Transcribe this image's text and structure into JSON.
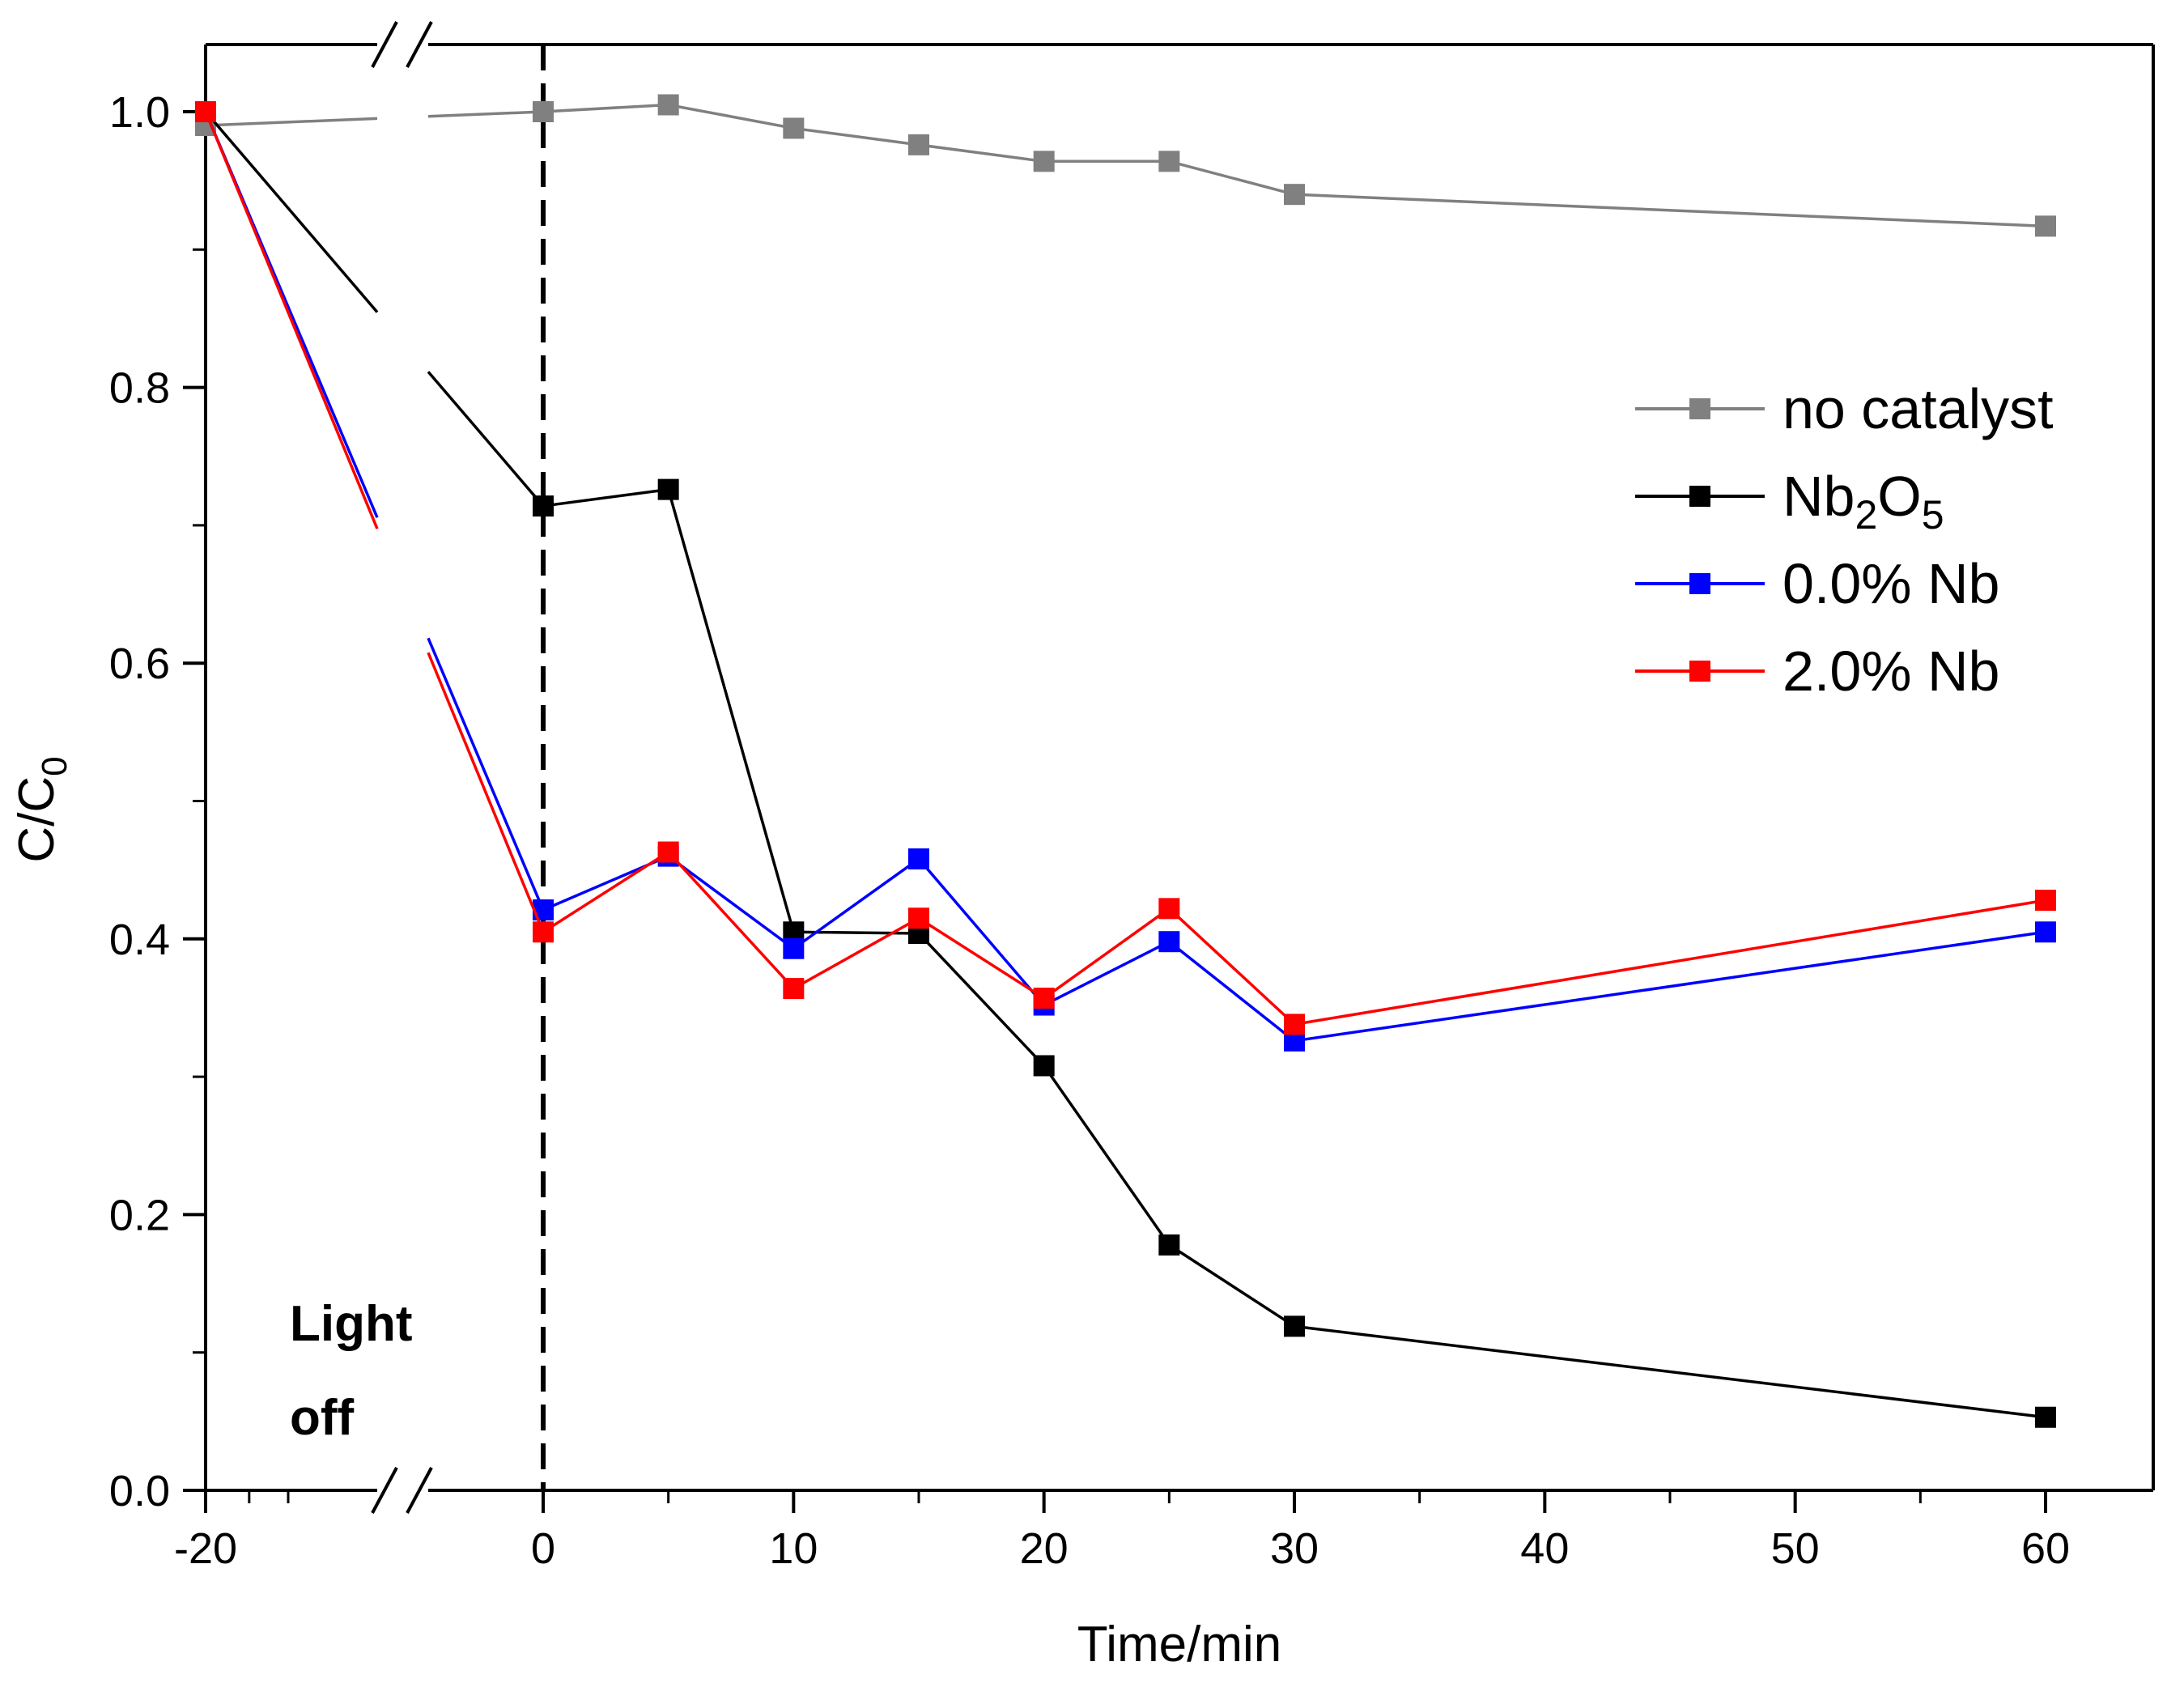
{
  "chart_data": {
    "type": "line",
    "title": "",
    "xlabel": "Time/min",
    "ylabel": "C/C0",
    "ylabel_main": "C/C",
    "ylabel_sub": "0",
    "xlim": [
      -20,
      65
    ],
    "ylim": [
      0.0,
      1.05
    ],
    "axis_break": "between -20 and 0",
    "x_ticks": [
      -20,
      0,
      10,
      20,
      30,
      40,
      50,
      60
    ],
    "x_tick_labels": [
      "-20",
      "0",
      "10",
      "20",
      "30",
      "40",
      "50",
      "60"
    ],
    "y_ticks": [
      0.0,
      0.2,
      0.4,
      0.6,
      0.8,
      1.0
    ],
    "y_tick_labels": [
      "0.0",
      "0.2",
      "0.4",
      "0.6",
      "0.8",
      "1.0"
    ],
    "x": [
      -20,
      0,
      5,
      10,
      15,
      20,
      25,
      30,
      60
    ],
    "series": [
      {
        "name": "no catalyst",
        "label_parts": [
          {
            "t": "no catalyst"
          }
        ],
        "color": "#808080",
        "values": [
          0.99,
          1.0,
          1.005,
          0.988,
          0.976,
          0.964,
          0.964,
          0.94,
          0.917
        ]
      },
      {
        "name": "Nb2O5",
        "label_parts": [
          {
            "t": "Nb"
          },
          {
            "t": "2",
            "sub": true
          },
          {
            "t": "O"
          },
          {
            "t": "5",
            "sub": true
          }
        ],
        "color": "#000000",
        "values": [
          1.0,
          0.714,
          0.726,
          0.405,
          0.404,
          0.308,
          0.178,
          0.119,
          0.053
        ]
      },
      {
        "name": "0.0% Nb",
        "label_parts": [
          {
            "t": "0.0% Nb"
          }
        ],
        "color": "#0000ff",
        "values": [
          1.0,
          0.421,
          0.46,
          0.393,
          0.458,
          0.352,
          0.398,
          0.326,
          0.405
        ]
      },
      {
        "name": "2.0% Nb",
        "label_parts": [
          {
            "t": "2.0% Nb"
          }
        ],
        "color": "#ff0000",
        "values": [
          1.0,
          0.405,
          0.463,
          0.364,
          0.415,
          0.357,
          0.422,
          0.338,
          0.428
        ]
      }
    ],
    "annotation": {
      "line1": "Light",
      "line2": "off",
      "x": 0
    },
    "legend_position": "top-right"
  }
}
